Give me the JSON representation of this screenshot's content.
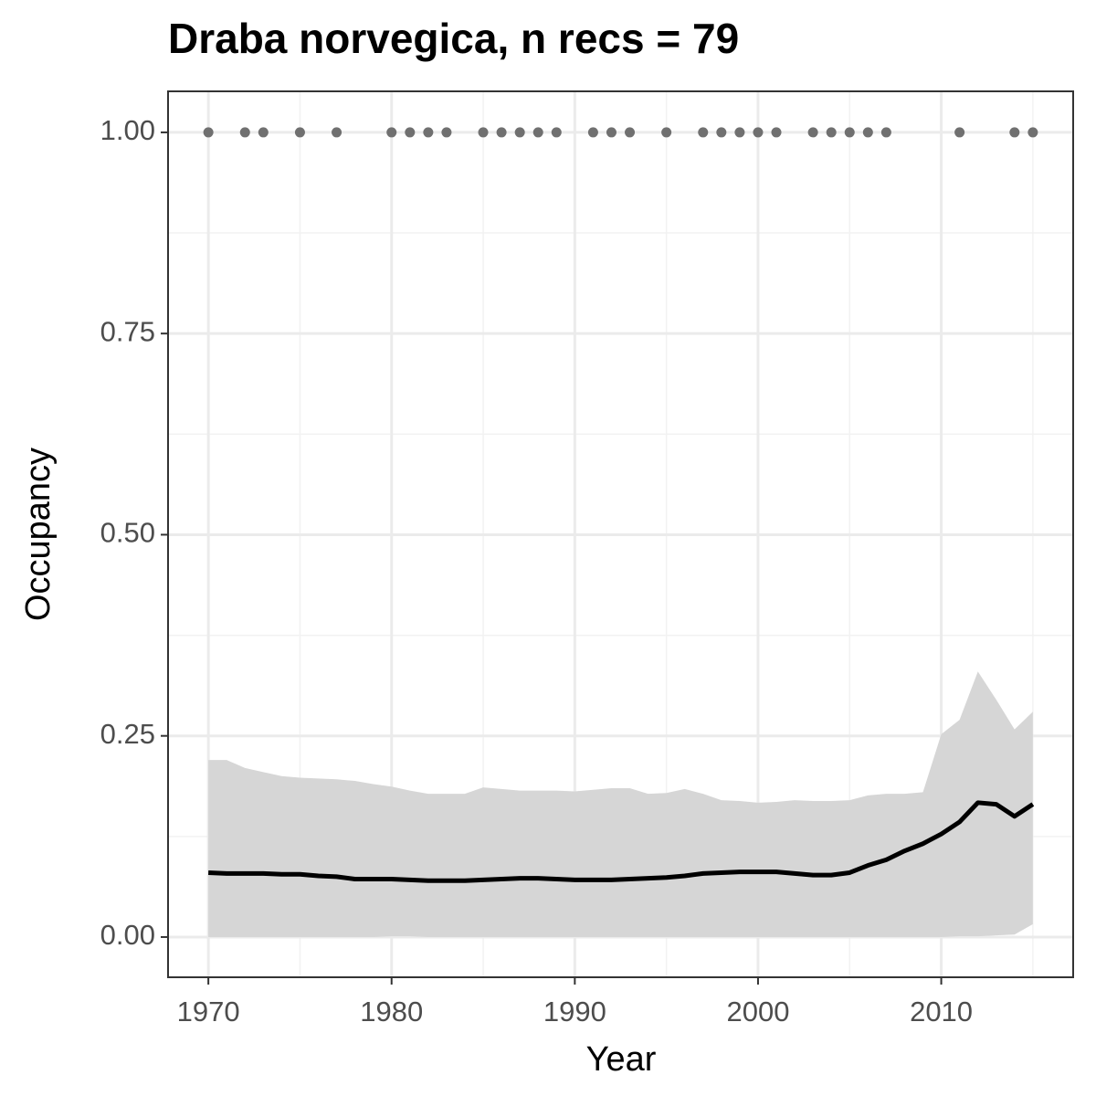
{
  "chart_data": {
    "type": "occupancy",
    "title": "Draba norvegica, n recs = 79",
    "x_label": "Year",
    "y_label": "Occupancy",
    "xlim": [
      1967.8,
      2017.2
    ],
    "ylim": [
      -0.05,
      1.051
    ],
    "xticks": [
      1970,
      1980,
      1990,
      2000,
      2010
    ],
    "yticks": [
      {
        "value": 0,
        "label": "0.00"
      },
      {
        "value": 0.25,
        "label": "0.25"
      },
      {
        "value": 0.5,
        "label": "0.50"
      },
      {
        "value": 0.75,
        "label": "0.75"
      },
      {
        "value": 1,
        "label": "1.00"
      }
    ],
    "grid": true,
    "x": [
      1970,
      1971,
      1972,
      1973,
      1974,
      1975,
      1976,
      1977,
      1978,
      1979,
      1980,
      1981,
      1982,
      1983,
      1984,
      1985,
      1986,
      1987,
      1988,
      1989,
      1990,
      1991,
      1992,
      1993,
      1994,
      1995,
      1996,
      1997,
      1998,
      1999,
      2000,
      2001,
      2002,
      2003,
      2004,
      2005,
      2006,
      2007,
      2008,
      2009,
      2010,
      2011,
      2012,
      2013,
      2014,
      2015
    ],
    "mean": {
      "color": "#000000",
      "values": [
        0.08,
        0.079,
        0.079,
        0.079,
        0.078,
        0.078,
        0.076,
        0.075,
        0.072,
        0.072,
        0.072,
        0.071,
        0.07,
        0.07,
        0.07,
        0.071,
        0.072,
        0.073,
        0.073,
        0.072,
        0.071,
        0.071,
        0.071,
        0.072,
        0.073,
        0.074,
        0.076,
        0.079,
        0.08,
        0.081,
        0.081,
        0.081,
        0.079,
        0.077,
        0.077,
        0.08,
        0.089,
        0.096,
        0.107,
        0.116,
        0.128,
        0.143,
        0.167,
        0.165,
        0.15,
        0.165
      ]
    },
    "band": {
      "color": "#d6d6d6",
      "upper": [
        0.22,
        0.22,
        0.21,
        0.205,
        0.2,
        0.198,
        0.197,
        0.196,
        0.194,
        0.19,
        0.187,
        0.182,
        0.178,
        0.178,
        0.178,
        0.186,
        0.184,
        0.182,
        0.182,
        0.182,
        0.181,
        0.183,
        0.185,
        0.185,
        0.178,
        0.179,
        0.184,
        0.178,
        0.17,
        0.169,
        0.167,
        0.168,
        0.17,
        0.169,
        0.169,
        0.17,
        0.176,
        0.178,
        0.178,
        0.18,
        0.252,
        0.27,
        0.33,
        0.295,
        0.258,
        0.28
      ],
      "lower": [
        0,
        0,
        0,
        0,
        0,
        0,
        0,
        0,
        0,
        0,
        0.001,
        0.001,
        0,
        0,
        0,
        0,
        0,
        0,
        0,
        0,
        0,
        0,
        0,
        0,
        0,
        0,
        0,
        0,
        0,
        0,
        0,
        0,
        0,
        0,
        0,
        0,
        0,
        0,
        0,
        0,
        0,
        0.001,
        0.001,
        0.002,
        0.003,
        0.016
      ]
    },
    "points": {
      "color": "#707070",
      "x": [
        1970,
        1972,
        1973,
        1975,
        1977,
        1980,
        1981,
        1982,
        1983,
        1985,
        1986,
        1987,
        1988,
        1989,
        1991,
        1992,
        1993,
        1995,
        1997,
        1998,
        1999,
        2000,
        2001,
        2003,
        2004,
        2005,
        2006,
        2007,
        2011,
        2014,
        2015
      ],
      "values": [
        1,
        1,
        1,
        1,
        1,
        1,
        1,
        1,
        1,
        1,
        1,
        1,
        1,
        1,
        1,
        1,
        1,
        1,
        1,
        1,
        1,
        1,
        1,
        1,
        1,
        1,
        1,
        1,
        1,
        1,
        1
      ]
    }
  }
}
